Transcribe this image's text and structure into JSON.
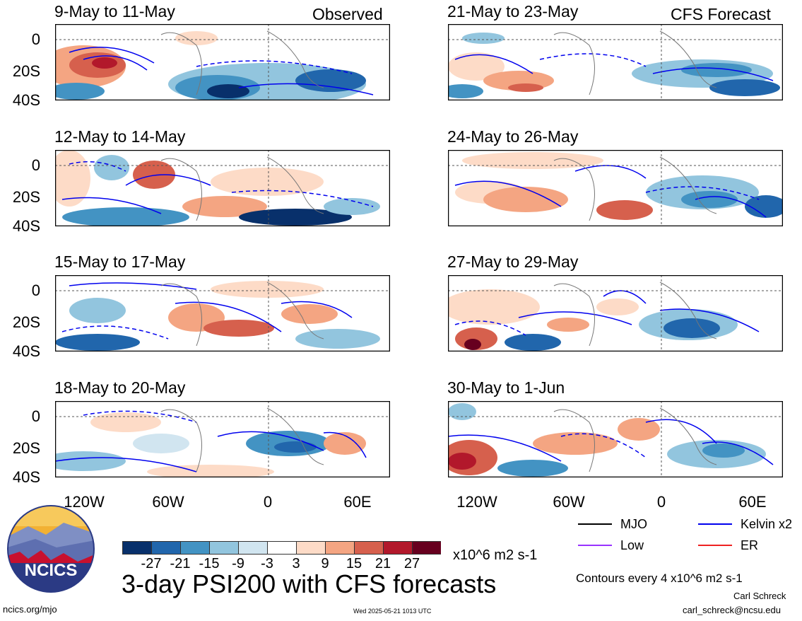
{
  "panels": [
    {
      "title": "9-May to 11-May",
      "tag": "Observed"
    },
    {
      "title": "12-May to 14-May",
      "tag": ""
    },
    {
      "title": "15-May to 17-May",
      "tag": ""
    },
    {
      "title": "18-May to 20-May",
      "tag": ""
    },
    {
      "title": "21-May to 23-May",
      "tag": "CFS Forecast"
    },
    {
      "title": "24-May to 26-May",
      "tag": ""
    },
    {
      "title": "27-May to 29-May",
      "tag": ""
    },
    {
      "title": "30-May to 1-Jun",
      "tag": ""
    }
  ],
  "lat_labels": [
    "0",
    "20S",
    "40S"
  ],
  "lon_labels": [
    "120W",
    "60W",
    "0",
    "60E"
  ],
  "colorbar": {
    "colors": [
      "#08306b",
      "#2166ac",
      "#4393c3",
      "#92c5de",
      "#d1e5f0",
      "#ffffff",
      "#fddbc7",
      "#f4a582",
      "#d6604d",
      "#b2182b",
      "#67001f"
    ],
    "ticks": [
      "-27",
      "-21",
      "-15",
      "-9",
      "-3",
      "3",
      "9",
      "15",
      "21",
      "27"
    ],
    "units": "x10^6 m2 s-1"
  },
  "legend": [
    {
      "label": "MJO",
      "color": "#000000"
    },
    {
      "label": "Kelvin x2",
      "color": "#0000ee"
    },
    {
      "label": "Low",
      "color": "#9933ff"
    },
    {
      "label": "ER",
      "color": "#ee2222"
    }
  ],
  "contour_note": "Contours every 4 x10^6 m2 s-1",
  "main_title": "3-day PSI200 with CFS forecasts",
  "author": "Carl Schreck",
  "email": "carl_schreck@ncsu.edu",
  "url": "ncics.org/mjo",
  "timestamp": "Wed 2025-05-21 1013 UTC",
  "logo_text": "NCICS"
}
